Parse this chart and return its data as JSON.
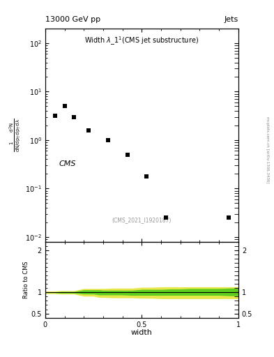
{
  "title_top": "13000 GeV pp",
  "title_right": "Jets",
  "plot_title": "Width $\\lambda\\_1^1$(CMS jet substructure)",
  "cms_label": "CMS",
  "paper_id": "(CMS_2021_I1920187)",
  "arxiv_label": "mcplots.cern.ch [arXiv:1306.3436]",
  "xlabel": "width",
  "ylabel_main_lines": [
    "mathrm d^2N",
    "1",
    "mathrm d N / mathrm d p_T mathrm d lambda"
  ],
  "ylabel_ratio": "Ratio to CMS",
  "data_x": [
    0.05,
    0.1,
    0.15,
    0.225,
    0.325,
    0.425,
    0.525,
    0.625,
    0.95
  ],
  "data_y": [
    3.2,
    5.0,
    3.0,
    1.6,
    1.0,
    0.5,
    0.18,
    0.025,
    0.025
  ],
  "ylim_main": [
    0.008,
    200.0
  ],
  "xlim": [
    0.0,
    1.0
  ],
  "ylim_ratio": [
    0.4,
    2.2
  ],
  "ratio_ytick_vals": [
    0.5,
    1.0,
    2.0
  ],
  "ratio_ytick_labels": [
    "0.5",
    "1",
    "2"
  ],
  "bg_color": "#ffffff",
  "marker_color": "#000000",
  "green_band_color": "#00bb00",
  "yellow_band_color": "#dddd00",
  "ratio_line_color": "#000000",
  "ratio_x": [
    0.0,
    0.02,
    0.05,
    0.08,
    0.1,
    0.15,
    0.2,
    0.25,
    0.28,
    0.3,
    0.35,
    0.4,
    0.45,
    0.5,
    0.55,
    0.6,
    0.65,
    0.7,
    0.75,
    0.8,
    0.85,
    0.9,
    0.95,
    1.0
  ],
  "ratio_green_upper": [
    1.01,
    1.01,
    1.01,
    1.02,
    1.02,
    1.02,
    1.06,
    1.06,
    1.06,
    1.05,
    1.05,
    1.05,
    1.05,
    1.07,
    1.07,
    1.07,
    1.08,
    1.08,
    1.09,
    1.09,
    1.09,
    1.09,
    1.1,
    1.1
  ],
  "ratio_green_lower": [
    0.99,
    0.99,
    0.99,
    0.98,
    0.98,
    0.98,
    0.96,
    0.96,
    0.94,
    0.94,
    0.94,
    0.94,
    0.93,
    0.93,
    0.93,
    0.93,
    0.93,
    0.93,
    0.93,
    0.93,
    0.93,
    0.93,
    0.92,
    0.92
  ],
  "ratio_yellow_upper": [
    1.03,
    1.03,
    1.03,
    1.04,
    1.04,
    1.04,
    1.09,
    1.09,
    1.09,
    1.09,
    1.1,
    1.1,
    1.1,
    1.12,
    1.12,
    1.13,
    1.13,
    1.13,
    1.13,
    1.13,
    1.13,
    1.13,
    1.13,
    1.13
  ],
  "ratio_yellow_lower": [
    0.97,
    0.97,
    0.97,
    0.96,
    0.96,
    0.96,
    0.91,
    0.91,
    0.88,
    0.88,
    0.87,
    0.87,
    0.87,
    0.86,
    0.86,
    0.85,
    0.85,
    0.85,
    0.85,
    0.85,
    0.85,
    0.85,
    0.85,
    0.85
  ]
}
